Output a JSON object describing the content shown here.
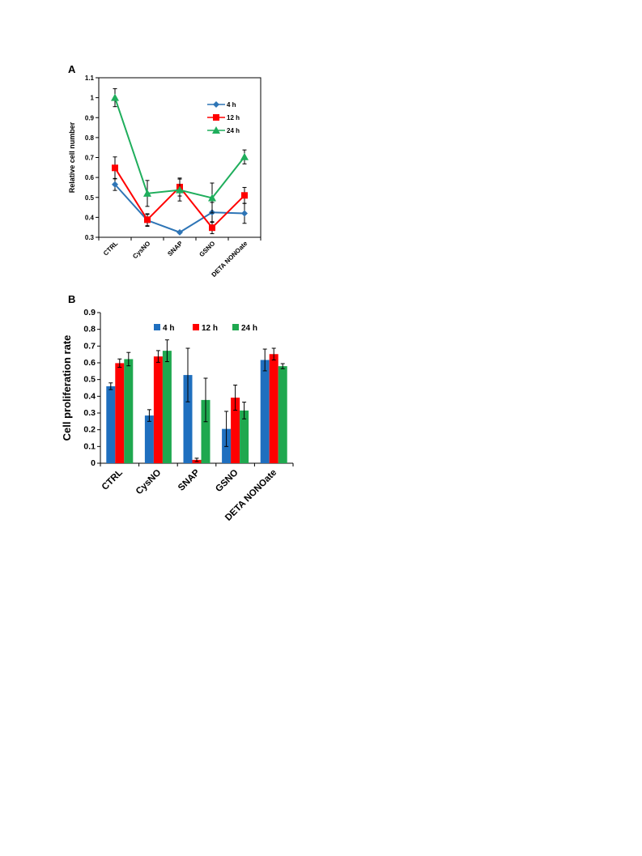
{
  "chart_data": [
    {
      "panel": "A",
      "type": "line",
      "title": "",
      "xlabel": "",
      "ylabel": "Relative cell number",
      "categories": [
        "CTRL",
        "CysNO",
        "SNAP",
        "GSNO",
        "DETA NONOate"
      ],
      "ylim": [
        0.3,
        1.1
      ],
      "yticks": [
        "0.3",
        "0.4",
        "0.5",
        "0.6",
        "0.7",
        "0.8",
        "0.9",
        "1",
        "1.1"
      ],
      "grid": false,
      "legend_position": "top-right",
      "series": [
        {
          "name": "4 h",
          "color": "#2e75b6",
          "marker": "diamond",
          "values": [
            0.565,
            0.385,
            0.325,
            0.425,
            0.42
          ],
          "errors": [
            0.03,
            0.03,
            0.005,
            0.05,
            0.05
          ]
        },
        {
          "name": "12 h",
          "color": "#ff0000",
          "marker": "square",
          "values": [
            0.648,
            0.388,
            0.552,
            0.348,
            0.51
          ],
          "errors": [
            0.055,
            0.03,
            0.045,
            0.03,
            0.04
          ]
        },
        {
          "name": "24 h",
          "color": "#1fae5c",
          "marker": "triangle",
          "values": [
            1.0,
            0.52,
            0.537,
            0.497,
            0.703
          ],
          "errors": [
            0.045,
            0.065,
            0.055,
            0.075,
            0.035
          ]
        }
      ]
    },
    {
      "panel": "B",
      "type": "bar",
      "title": "",
      "xlabel": "",
      "ylabel": "Cell proliferation rate",
      "categories": [
        "CTRL",
        "CysNO",
        "SNAP",
        "GSNO",
        "DETA NONOate"
      ],
      "ylim": [
        0,
        0.9
      ],
      "yticks": [
        "0",
        "0.1",
        "0.2",
        "0.3",
        "0.4",
        "0.5",
        "0.6",
        "0.7",
        "0.8",
        "0.9"
      ],
      "grid": false,
      "legend_position": "top",
      "series": [
        {
          "name": "4 h",
          "color": "#1f6fbf",
          "values": [
            0.46,
            0.285,
            0.527,
            0.205,
            0.617
          ],
          "errors": [
            0.02,
            0.035,
            0.16,
            0.105,
            0.065
          ]
        },
        {
          "name": "12 h",
          "color": "#ff0000",
          "values": [
            0.598,
            0.638,
            0.02,
            0.392,
            0.652
          ],
          "errors": [
            0.025,
            0.035,
            0.01,
            0.075,
            0.035
          ]
        },
        {
          "name": "24 h",
          "color": "#1fa84f",
          "values": [
            0.622,
            0.672,
            0.378,
            0.315,
            0.58
          ],
          "errors": [
            0.04,
            0.065,
            0.13,
            0.05,
            0.015
          ]
        }
      ]
    }
  ]
}
